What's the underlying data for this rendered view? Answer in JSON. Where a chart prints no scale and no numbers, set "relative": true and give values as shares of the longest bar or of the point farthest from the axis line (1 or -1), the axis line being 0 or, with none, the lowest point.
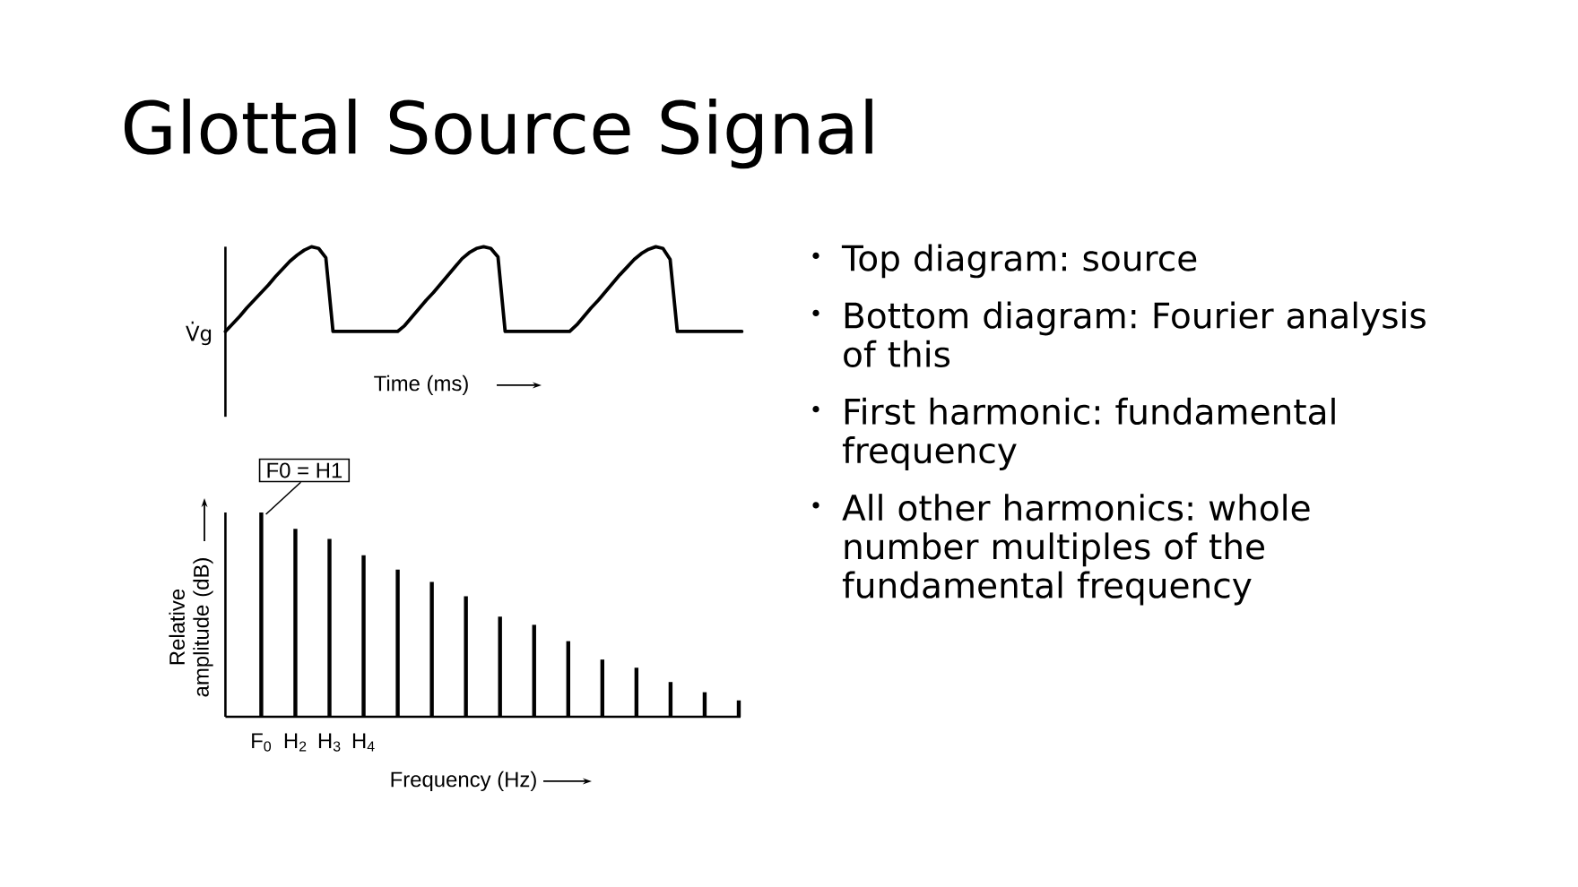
{
  "chart_data": [
    {
      "type": "line",
      "title": "Glottal Source Signal",
      "ylabel": "V̇g",
      "xlabel": "Time (ms)",
      "relative": true,
      "tick_labels": false,
      "color": "#000000",
      "categories": [
        null,
        null,
        null,
        null,
        null,
        null,
        null,
        null,
        null,
        null,
        null,
        null,
        null,
        null,
        null,
        null,
        null,
        null,
        null,
        null,
        null,
        null,
        null,
        null,
        null,
        null,
        null,
        null,
        null,
        null,
        null,
        null,
        null,
        null,
        null,
        null,
        null,
        null,
        null,
        null,
        null,
        null,
        null,
        null,
        null,
        null,
        null,
        null,
        null,
        null,
        null,
        null,
        null,
        null,
        null,
        null,
        null,
        null,
        null,
        null,
        null,
        null,
        null,
        null,
        null,
        null,
        null,
        null,
        null,
        null,
        null,
        null,
        null
      ],
      "values": [
        0,
        0.09,
        0.18,
        0.28,
        0.37,
        0.46,
        0.55,
        0.65,
        0.74,
        0.83,
        0.9,
        0.96,
        1.0,
        0.98,
        0.87,
        0,
        0,
        0,
        0,
        0,
        0,
        0,
        0,
        0,
        0,
        0.07,
        0.17,
        0.27,
        0.37,
        0.46,
        0.56,
        0.66,
        0.76,
        0.86,
        0.93,
        0.98,
        1.0,
        0.98,
        0.88,
        0,
        0,
        0,
        0,
        0,
        0,
        0,
        0,
        0,
        0,
        0.08,
        0.18,
        0.28,
        0.37,
        0.47,
        0.57,
        0.67,
        0.76,
        0.85,
        0.92,
        0.97,
        1.0,
        0.98,
        0.85,
        0,
        0,
        0,
        0,
        0,
        0,
        0,
        0,
        0,
        0
      ]
    },
    {
      "type": "bar",
      "ylabel": "Relative amplitude (dB)",
      "xlabel": "Frequency (Hz)",
      "relative": true,
      "tick_labels": "x",
      "color": "#000000",
      "categories": [
        "F$_{0}$",
        "H$_{2}$",
        "H$_{3}$",
        "H$_{4}$",
        null,
        null,
        null,
        null,
        null,
        null,
        null,
        null,
        null,
        null,
        null
      ],
      "values": [
        1.0,
        0.92,
        0.87,
        0.79,
        0.72,
        0.66,
        0.59,
        0.49,
        0.45,
        0.37,
        0.28,
        0.24,
        0.17,
        0.12,
        0.08
      ],
      "annotations": [
        {
          "text": "F0 = H1",
          "x": "F$_{0}$",
          "y": 1.0
        }
      ]
    },
    {
      "type": "other",
      "annotations": [
        "Top diagram: source",
        "Bottom diagram: Fourier analysis of this",
        "First harmonic: fundamental frequency",
        "All other harmonics: whole number multiples of the fundamental frequency"
      ]
    }
  ]
}
